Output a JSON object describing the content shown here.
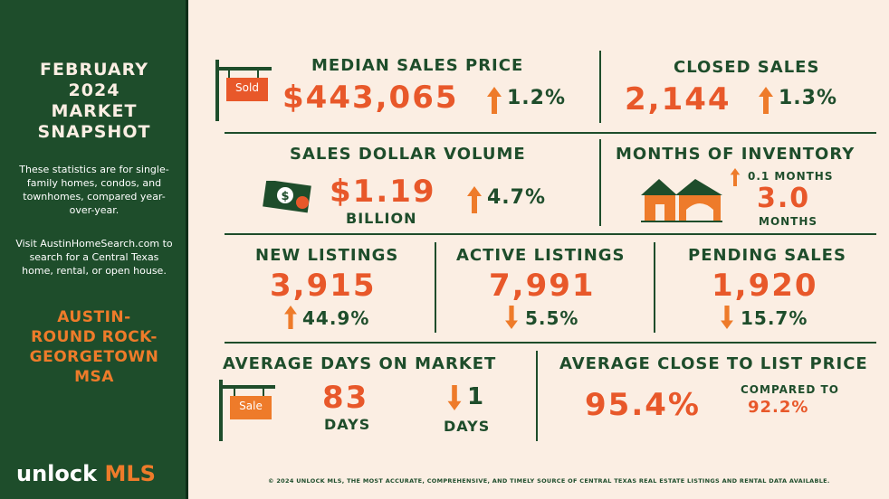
{
  "sidebar": {
    "title_lines": [
      "FEBRUARY",
      "2024",
      "MARKET",
      "SNAPSHOT"
    ],
    "description": "These statistics are for single-family homes, condos, and townhomes, compared year-over-year.",
    "visit": "Visit AustinHomeSearch.com to search for a Central Texas home, rental, or open house.",
    "msa_lines": [
      "AUSTIN-",
      "ROUND ROCK-",
      "GEORGETOWN",
      "MSA"
    ],
    "logo_unlock": "unlock",
    "logo_mls": "MLS"
  },
  "median_sales_price": {
    "label": "MEDIAN SALES PRICE",
    "value": "$443,065",
    "change": "1.2%",
    "sign_text": "Sold"
  },
  "closed_sales": {
    "label": "CLOSED SALES",
    "value": "2,144",
    "change": "1.3%"
  },
  "sales_dollar_volume": {
    "label": "SALES DOLLAR VOLUME",
    "value": "$1.19",
    "unit": "BILLION",
    "change": "4.7%"
  },
  "months_inventory": {
    "label": "MONTHS OF INVENTORY",
    "change": "0.1 MONTHS",
    "value": "3.0",
    "unit": "MONTHS"
  },
  "new_listings": {
    "label": "NEW LISTINGS",
    "value": "3,915",
    "change": "44.9%"
  },
  "active_listings": {
    "label": "ACTIVE LISTINGS",
    "value": "7,991",
    "change": "5.5%"
  },
  "pending_sales": {
    "label": "PENDING SALES",
    "value": "1,920",
    "change": "15.7%"
  },
  "avg_days_market": {
    "label": "AVERAGE DAYS ON MARKET",
    "value": "83",
    "unit": "DAYS",
    "change": "1",
    "change_unit": "DAYS",
    "sign_text": "Sale"
  },
  "avg_close_list": {
    "label": "AVERAGE CLOSE TO LIST PRICE",
    "value": "95.4%",
    "compared_label": "COMPARED TO",
    "compared_value": "92.2%"
  },
  "footer": "© 2024 UNLOCK MLS, THE MOST ACCURATE, COMPREHENSIVE, AND TIMELY SOURCE  OF CENTRAL TEXAS REAL ESTATE LISTINGS AND RENTAL DATA AVAILABLE.",
  "colors": {
    "green": "#1e4d2b",
    "orange": "#e8582a",
    "accent": "#ee7b2a",
    "background": "#fbeee3"
  },
  "icons": [
    "sold-sign-icon",
    "money-icon",
    "house-icon",
    "sale-sign-icon",
    "arrow-up-icon",
    "arrow-down-icon"
  ]
}
